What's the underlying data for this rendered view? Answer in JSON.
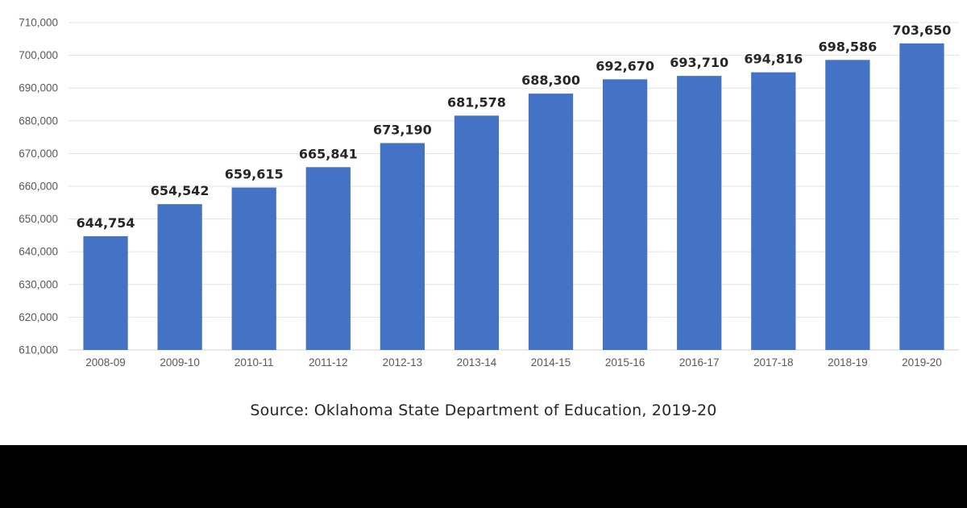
{
  "source_note": "Source: Oklahoma State Department of Education, 2019-20",
  "chart_data": {
    "type": "bar",
    "categories": [
      "2008-09",
      "2009-10",
      "2010-11",
      "2011-12",
      "2012-13",
      "2013-14",
      "2014-15",
      "2015-16",
      "2016-17",
      "2017-18",
      "2018-19",
      "2019-20"
    ],
    "values": [
      644754,
      654542,
      659615,
      665841,
      673190,
      681578,
      688300,
      692670,
      693710,
      694816,
      698586,
      703650
    ],
    "data_labels": [
      "644,754",
      "654,542",
      "659,615",
      "665,841",
      "673,190",
      "681,578",
      "688,300",
      "692,670",
      "693,710",
      "694,816",
      "698,586",
      "703,650"
    ],
    "y_ticks": [
      610000,
      620000,
      630000,
      640000,
      650000,
      660000,
      670000,
      680000,
      690000,
      700000,
      710000
    ],
    "y_tick_labels": [
      "610,000",
      "620,000",
      "630,000",
      "640,000",
      "650,000",
      "660,000",
      "670,000",
      "680,000",
      "690,000",
      "700,000",
      "710,000"
    ],
    "ylim": [
      610000,
      710000
    ],
    "grid": true,
    "legend": "none",
    "bar_color": "#4472c4"
  }
}
